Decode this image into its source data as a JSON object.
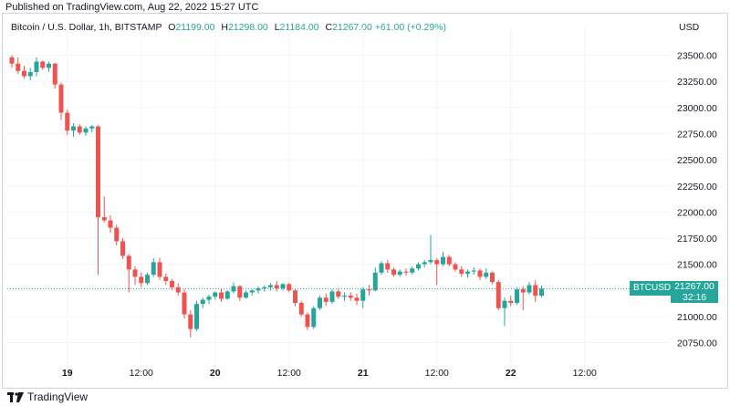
{
  "header": {
    "published": "Published on TradingView.com, Aug 22, 2022 15:27 UTC"
  },
  "legend": {
    "symbol": "Bitcoin / U.S. Dollar, 1h, BITSTAMP",
    "open_label": "O",
    "open": "21199.00",
    "high_label": "H",
    "high": "21298.00",
    "low_label": "L",
    "low": "21184.00",
    "close_label": "C",
    "close": "21267.00",
    "change": "+61.00 (+0.29%)"
  },
  "axis": {
    "currency": "USD"
  },
  "price_label": {
    "ticker": "BTCUSD",
    "price": "21267.00",
    "countdown": "32:16"
  },
  "footer": {
    "brand": "TradingView"
  },
  "colors": {
    "up": "#26a69a",
    "down": "#ef5350",
    "grid": "#f0f3fa",
    "price_line": "#26a69a"
  },
  "chart_data": {
    "type": "candlestick",
    "ylim": [
      20580,
      23680
    ],
    "y_ticks": [
      20750,
      21000,
      21250,
      21500,
      21750,
      22000,
      22250,
      22500,
      22750,
      23000,
      23250,
      23500
    ],
    "y_tick_labels": [
      "20750.00",
      "21000.00",
      "21250.00",
      "21500.00",
      "21750.00",
      "22000.00",
      "22250.00",
      "22500.00",
      "22750.00",
      "23000.00",
      "23250.00",
      "23500.00"
    ],
    "x_ticks": [
      {
        "label": "19",
        "index": 9,
        "bold": true
      },
      {
        "label": "12:00",
        "index": 21,
        "bold": false
      },
      {
        "label": "20",
        "index": 33,
        "bold": true
      },
      {
        "label": "12:00",
        "index": 45,
        "bold": false
      },
      {
        "label": "21",
        "index": 57,
        "bold": true
      },
      {
        "label": "12:00",
        "index": 69,
        "bold": false
      },
      {
        "label": "22",
        "index": 81,
        "bold": true
      },
      {
        "label": "12:00",
        "index": 93,
        "bold": false
      }
    ],
    "last_price": 21267,
    "candles": [
      [
        23480,
        23500,
        23380,
        23420
      ],
      [
        23420,
        23480,
        23320,
        23350
      ],
      [
        23350,
        23400,
        23280,
        23300
      ],
      [
        23300,
        23380,
        23260,
        23340
      ],
      [
        23340,
        23480,
        23300,
        23440
      ],
      [
        23440,
        23450,
        23360,
        23380
      ],
      [
        23380,
        23440,
        23340,
        23420
      ],
      [
        23420,
        23430,
        23180,
        23220
      ],
      [
        23220,
        23240,
        22880,
        22950
      ],
      [
        22950,
        22980,
        22740,
        22780
      ],
      [
        22780,
        22850,
        22720,
        22820
      ],
      [
        22820,
        22840,
        22740,
        22760
      ],
      [
        22760,
        22820,
        22730,
        22800
      ],
      [
        22800,
        22830,
        22760,
        22820
      ],
      [
        22820,
        22830,
        21400,
        21950
      ],
      [
        21950,
        22150,
        21900,
        21920
      ],
      [
        21920,
        21970,
        21800,
        21850
      ],
      [
        21850,
        21880,
        21680,
        21720
      ],
      [
        21720,
        21750,
        21550,
        21580
      ],
      [
        21580,
        21600,
        21230,
        21450
      ],
      [
        21450,
        21480,
        21300,
        21380
      ],
      [
        21380,
        21420,
        21280,
        21320
      ],
      [
        21320,
        21420,
        21300,
        21400
      ],
      [
        21400,
        21560,
        21380,
        21520
      ],
      [
        21520,
        21560,
        21350,
        21380
      ],
      [
        21380,
        21410,
        21300,
        21340
      ],
      [
        21340,
        21360,
        21250,
        21280
      ],
      [
        21280,
        21320,
        21200,
        21230
      ],
      [
        21230,
        21260,
        20980,
        21020
      ],
      [
        21020,
        21060,
        20800,
        20880
      ],
      [
        20880,
        21150,
        20860,
        21120
      ],
      [
        21120,
        21180,
        21080,
        21160
      ],
      [
        21160,
        21210,
        21120,
        21190
      ],
      [
        21190,
        21240,
        21160,
        21230
      ],
      [
        21230,
        21270,
        21140,
        21170
      ],
      [
        21170,
        21250,
        21160,
        21240
      ],
      [
        21240,
        21330,
        21220,
        21290
      ],
      [
        21290,
        21300,
        21150,
        21180
      ],
      [
        21180,
        21250,
        21170,
        21230
      ],
      [
        21230,
        21260,
        21200,
        21250
      ],
      [
        21250,
        21290,
        21220,
        21270
      ],
      [
        21270,
        21300,
        21240,
        21280
      ],
      [
        21280,
        21320,
        21250,
        21300
      ],
      [
        21300,
        21340,
        21240,
        21270
      ],
      [
        21270,
        21320,
        21250,
        21310
      ],
      [
        21310,
        21320,
        21230,
        21250
      ],
      [
        21250,
        21260,
        21100,
        21130
      ],
      [
        21130,
        21150,
        21000,
        21020
      ],
      [
        21020,
        21040,
        20870,
        20900
      ],
      [
        20900,
        21100,
        20880,
        21080
      ],
      [
        21080,
        21200,
        21060,
        21180
      ],
      [
        21180,
        21220,
        21100,
        21140
      ],
      [
        21140,
        21260,
        21120,
        21240
      ],
      [
        21240,
        21260,
        21170,
        21190
      ],
      [
        21190,
        21230,
        21150,
        21200
      ],
      [
        21200,
        21230,
        21150,
        21180
      ],
      [
        21180,
        21220,
        21110,
        21150
      ],
      [
        21150,
        21280,
        21080,
        21260
      ],
      [
        21260,
        21300,
        21200,
        21250
      ],
      [
        21250,
        21470,
        21240,
        21420
      ],
      [
        21420,
        21530,
        21400,
        21510
      ],
      [
        21510,
        21540,
        21420,
        21450
      ],
      [
        21450,
        21470,
        21380,
        21400
      ],
      [
        21400,
        21450,
        21380,
        21430
      ],
      [
        21430,
        21460,
        21390,
        21420
      ],
      [
        21420,
        21480,
        21400,
        21460
      ],
      [
        21460,
        21520,
        21440,
        21500
      ],
      [
        21500,
        21540,
        21470,
        21520
      ],
      [
        21520,
        21780,
        21500,
        21540
      ],
      [
        21540,
        21560,
        21300,
        21500
      ],
      [
        21500,
        21620,
        21480,
        21570
      ],
      [
        21570,
        21590,
        21480,
        21500
      ],
      [
        21500,
        21520,
        21430,
        21450
      ],
      [
        21450,
        21480,
        21380,
        21410
      ],
      [
        21410,
        21450,
        21370,
        21430
      ],
      [
        21430,
        21470,
        21400,
        21440
      ],
      [
        21440,
        21460,
        21350,
        21380
      ],
      [
        21380,
        21460,
        21360,
        21420
      ],
      [
        21420,
        21430,
        21310,
        21330
      ],
      [
        21330,
        21350,
        21060,
        21080
      ],
      [
        21080,
        21180,
        20910,
        21150
      ],
      [
        21150,
        21200,
        21100,
        21130
      ],
      [
        21130,
        21280,
        21110,
        21260
      ],
      [
        21260,
        21290,
        21060,
        21230
      ],
      [
        21230,
        21330,
        21210,
        21300
      ],
      [
        21300,
        21350,
        21140,
        21199
      ],
      [
        21199,
        21298,
        21184,
        21267
      ]
    ]
  }
}
